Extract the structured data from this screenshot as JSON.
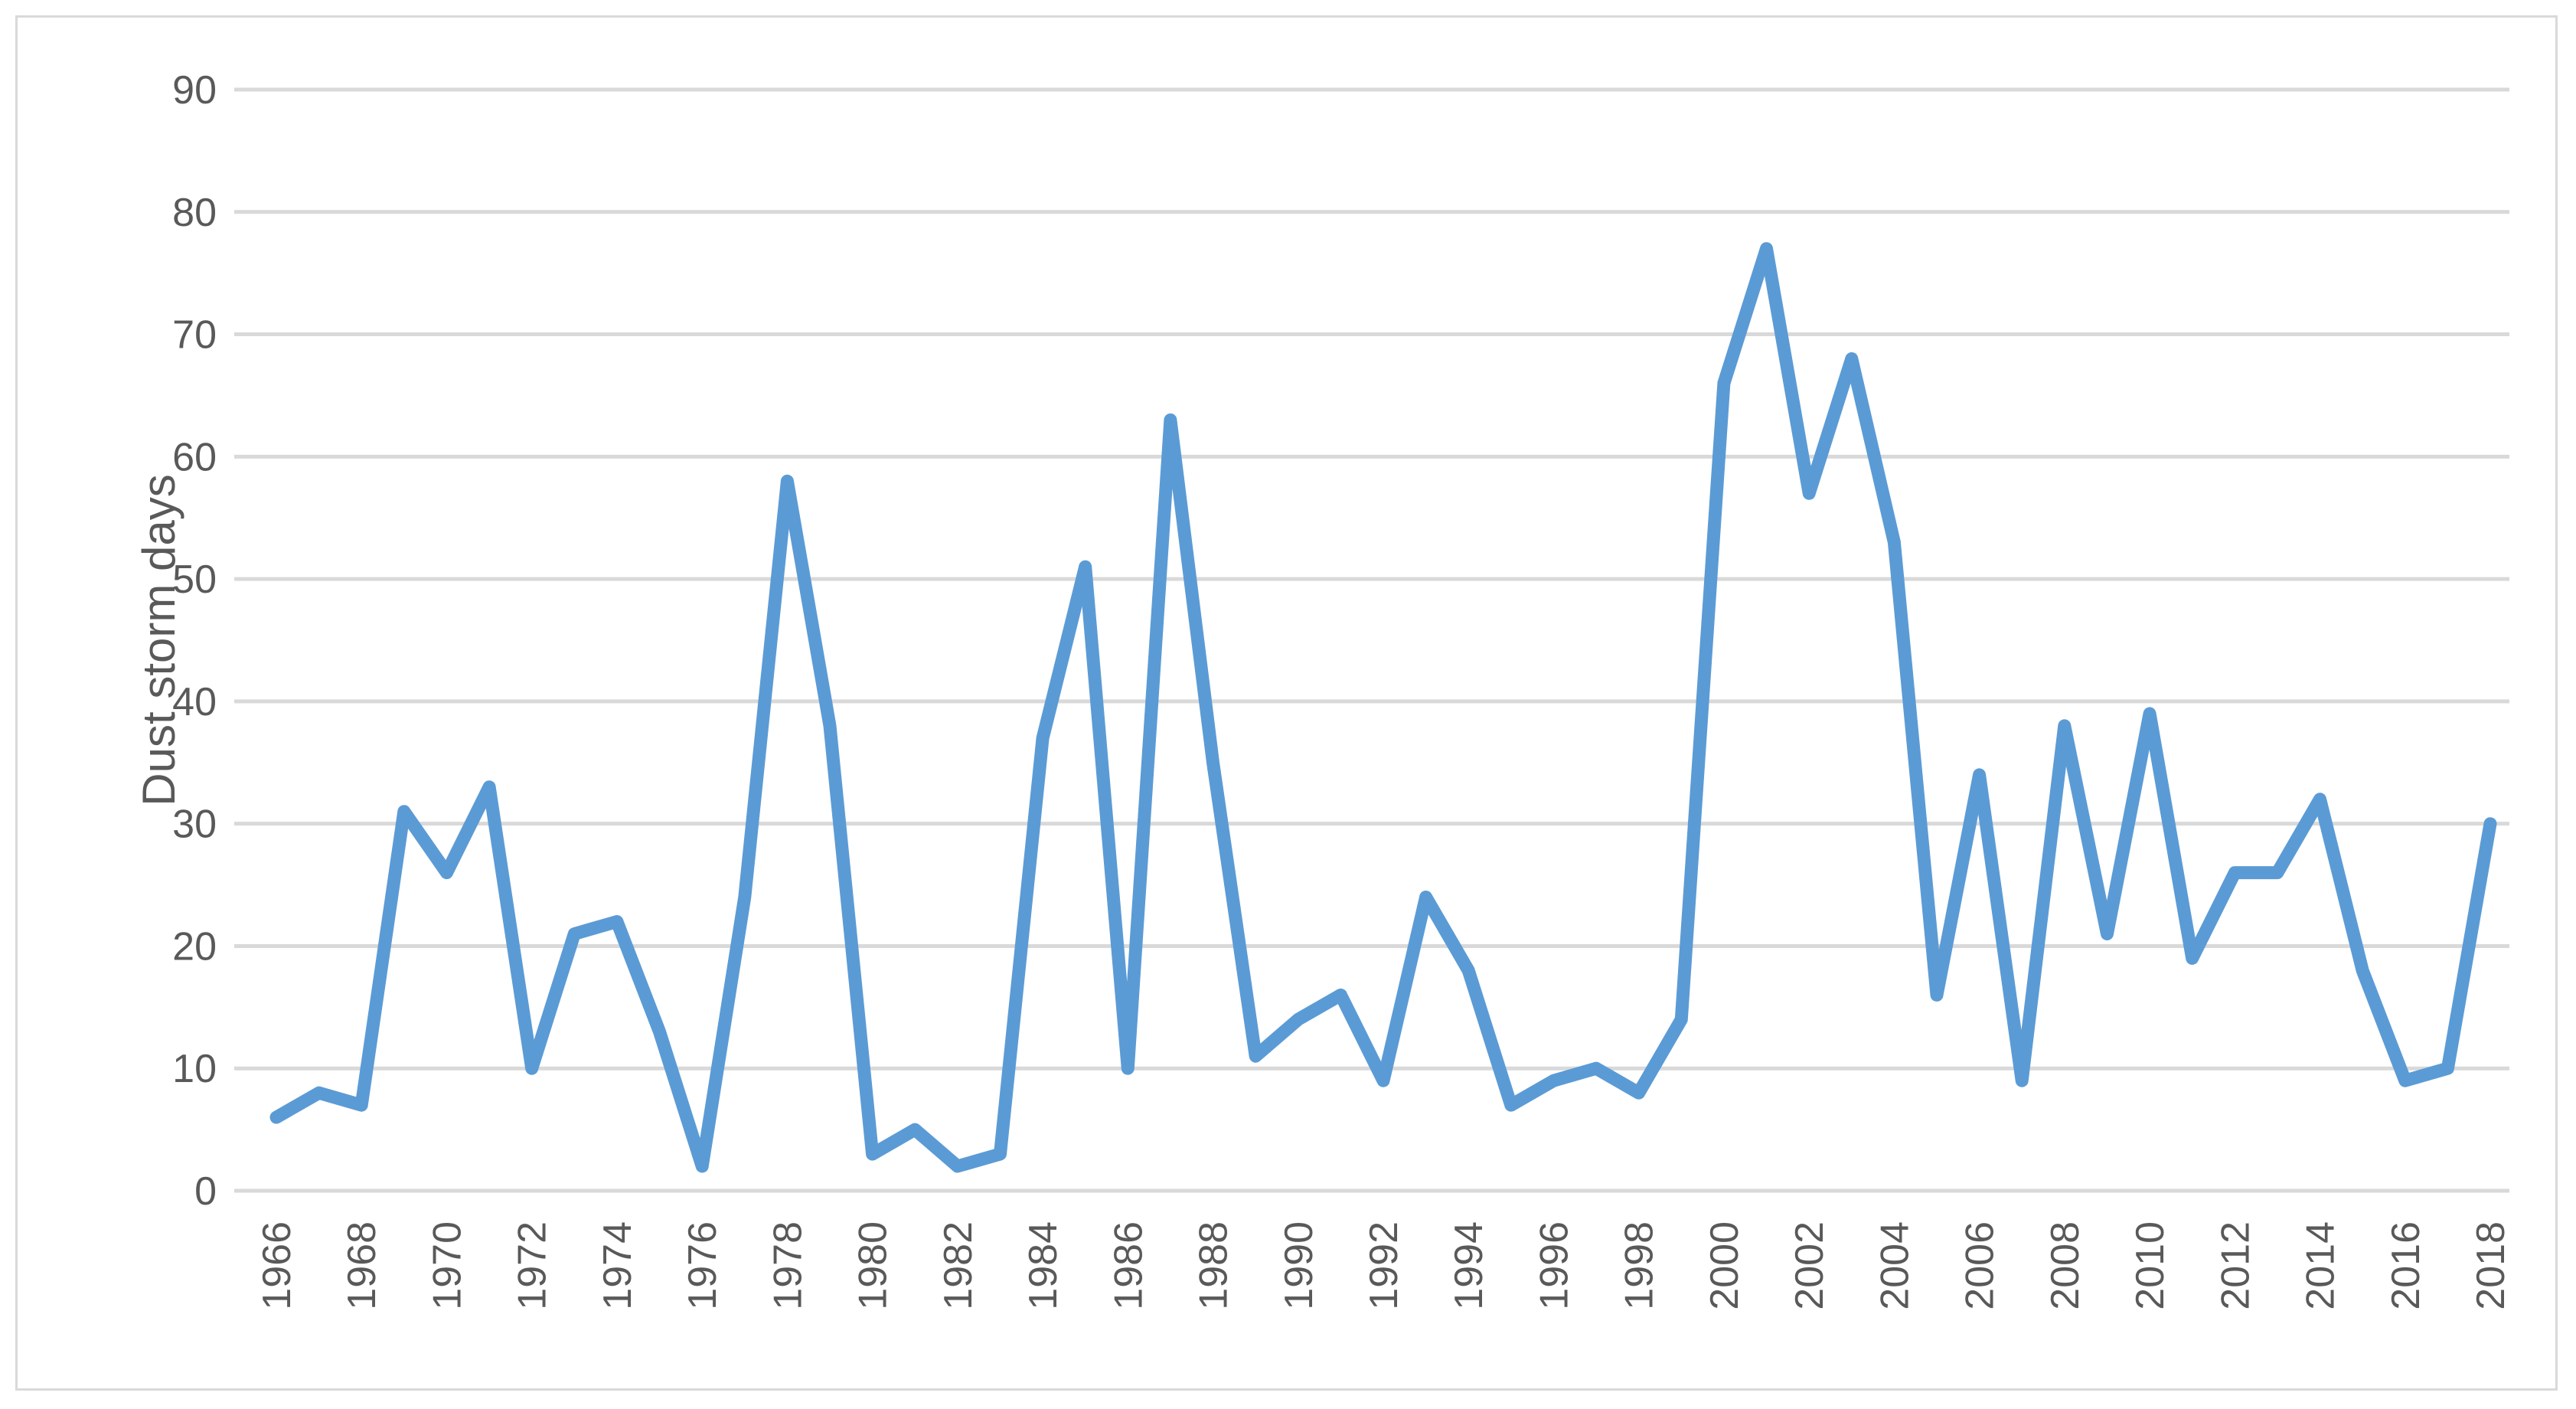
{
  "chart_data": {
    "type": "line",
    "title": "",
    "xlabel": "",
    "ylabel": "Dust storm days",
    "ylim": [
      0,
      90
    ],
    "yticks": [
      0,
      10,
      20,
      30,
      40,
      50,
      60,
      70,
      80,
      90
    ],
    "grid": true,
    "legend": "none",
    "x_tick_labels": [
      "1966",
      "1968",
      "1970",
      "1972",
      "1974",
      "1976",
      "1978",
      "1980",
      "1982",
      "1984",
      "1986",
      "1988",
      "1990",
      "1992",
      "1994",
      "1996",
      "1998",
      "2000",
      "2002",
      "2004",
      "2006",
      "2008",
      "2010",
      "2012",
      "2014",
      "2016",
      "2018"
    ],
    "x": [
      1966,
      1967,
      1968,
      1969,
      1970,
      1971,
      1972,
      1973,
      1974,
      1975,
      1976,
      1977,
      1978,
      1979,
      1980,
      1981,
      1982,
      1983,
      1984,
      1985,
      1986,
      1987,
      1988,
      1989,
      1990,
      1991,
      1992,
      1993,
      1994,
      1995,
      1996,
      1997,
      1998,
      1999,
      2000,
      2001,
      2002,
      2003,
      2004,
      2005,
      2006,
      2007,
      2008,
      2009,
      2010,
      2011,
      2012,
      2013,
      2014,
      2015,
      2016,
      2017,
      2018
    ],
    "series": [
      {
        "color": "#5b9bd5",
        "values": [
          6,
          8,
          7,
          31,
          26,
          33,
          10,
          21,
          22,
          13,
          2,
          24,
          58,
          38,
          3,
          5,
          2,
          3,
          37,
          51,
          10,
          63,
          35,
          11,
          14,
          16,
          9,
          24,
          18,
          7,
          9,
          10,
          8,
          14,
          66,
          77,
          57,
          68,
          53,
          16,
          34,
          9,
          38,
          21,
          39,
          19,
          26,
          26,
          32,
          18,
          9,
          10,
          30
        ]
      }
    ]
  }
}
